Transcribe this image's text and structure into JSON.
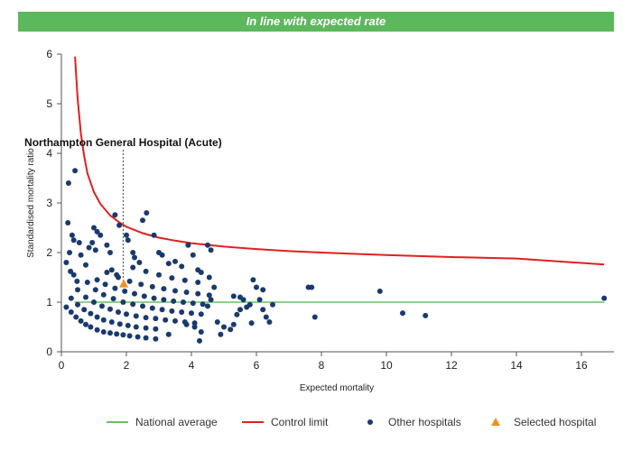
{
  "banner": {
    "text": "In line with expected rate",
    "color": "#5cb85c"
  },
  "chart_data": {
    "type": "scatter",
    "xlabel": "Expected mortality",
    "ylabel": "Standardised mortality ratio",
    "xlim": [
      0,
      17
    ],
    "ylim": [
      0,
      6
    ],
    "x_ticks": [
      0,
      2,
      4,
      6,
      8,
      10,
      12,
      14,
      16
    ],
    "y_ticks": [
      0,
      1,
      2,
      3,
      4,
      5,
      6
    ],
    "grid": false,
    "legend_position": "bottom",
    "annotation": {
      "text": "Northampton General Hospital (Acute)",
      "x": 1.9
    },
    "colors": {
      "national_average": "#6abf69",
      "control_limit": "#e02020",
      "other_hospitals": "#1a3a6e",
      "selected_hospital": "#f0901e"
    },
    "legend": [
      {
        "key": "national_average",
        "label": "National average",
        "marker": "line"
      },
      {
        "key": "control_limit",
        "label": "Control limit",
        "marker": "line"
      },
      {
        "key": "other_hospitals",
        "label": "Other hospitals",
        "marker": "dot"
      },
      {
        "key": "selected_hospital",
        "label": "Selected hospital",
        "marker": "triangle"
      }
    ],
    "series": [
      {
        "name": "National average",
        "type": "line",
        "x": [
          0.4,
          16.7
        ],
        "y": [
          1.0,
          1.0
        ]
      },
      {
        "name": "Control limit",
        "type": "line",
        "x": [
          0.42,
          0.5,
          0.6,
          0.7,
          0.8,
          1.0,
          1.2,
          1.5,
          1.8,
          2.0,
          2.5,
          3.0,
          3.5,
          4.0,
          5.0,
          6.0,
          7.0,
          8.0,
          10.0,
          12.0,
          14.0,
          16.7
        ],
        "y": [
          5.95,
          5.1,
          4.4,
          3.95,
          3.6,
          3.22,
          2.98,
          2.75,
          2.6,
          2.52,
          2.39,
          2.3,
          2.24,
          2.19,
          2.12,
          2.07,
          2.03,
          2.0,
          1.95,
          1.91,
          1.88,
          1.76
        ]
      },
      {
        "name": "Other hospitals",
        "type": "scatter",
        "points": [
          [
            0.22,
            3.4
          ],
          [
            0.42,
            3.65
          ],
          [
            0.2,
            2.6
          ],
          [
            0.33,
            2.35
          ],
          [
            0.38,
            2.25
          ],
          [
            0.55,
            2.2
          ],
          [
            0.85,
            2.1
          ],
          [
            0.25,
            2.0
          ],
          [
            0.6,
            1.95
          ],
          [
            0.75,
            1.75
          ],
          [
            0.15,
            1.8
          ],
          [
            0.28,
            1.62
          ],
          [
            0.38,
            1.55
          ],
          [
            0.48,
            1.42
          ],
          [
            1.0,
            2.5
          ],
          [
            1.1,
            2.42
          ],
          [
            1.2,
            2.35
          ],
          [
            0.95,
            2.2
          ],
          [
            1.05,
            2.05
          ],
          [
            1.4,
            2.15
          ],
          [
            1.5,
            2.0
          ],
          [
            1.65,
            2.76
          ],
          [
            1.78,
            2.55
          ],
          [
            2.0,
            2.35
          ],
          [
            2.05,
            2.25
          ],
          [
            2.2,
            2.0
          ],
          [
            1.55,
            1.65
          ],
          [
            1.7,
            1.55
          ],
          [
            2.25,
            1.9
          ],
          [
            2.4,
            1.8
          ],
          [
            2.5,
            2.65
          ],
          [
            2.62,
            2.8
          ],
          [
            2.85,
            2.35
          ],
          [
            3.0,
            2.0
          ],
          [
            3.1,
            1.95
          ],
          [
            3.3,
            1.78
          ],
          [
            3.5,
            1.82
          ],
          [
            3.7,
            1.72
          ],
          [
            3.9,
            2.15
          ],
          [
            4.05,
            1.95
          ],
          [
            4.2,
            1.65
          ],
          [
            4.3,
            1.6
          ],
          [
            4.5,
            2.15
          ],
          [
            4.6,
            2.05
          ],
          [
            4.55,
            1.5
          ],
          [
            4.7,
            1.3
          ],
          [
            4.6,
            1.05
          ],
          [
            4.5,
            0.92
          ],
          [
            4.1,
            0.5
          ],
          [
            4.3,
            0.4
          ],
          [
            4.25,
            0.22
          ],
          [
            3.3,
            0.35
          ],
          [
            3.85,
            0.55
          ],
          [
            4.8,
            0.6
          ],
          [
            5.0,
            0.5
          ],
          [
            5.2,
            0.45
          ],
          [
            4.9,
            0.35
          ],
          [
            5.3,
            1.12
          ],
          [
            5.5,
            1.1
          ],
          [
            5.6,
            1.05
          ],
          [
            5.7,
            0.9
          ],
          [
            5.4,
            0.75
          ],
          [
            5.5,
            0.85
          ],
          [
            5.8,
            0.95
          ],
          [
            5.9,
            1.45
          ],
          [
            6.0,
            1.3
          ],
          [
            6.2,
            1.25
          ],
          [
            6.1,
            1.05
          ],
          [
            6.2,
            0.85
          ],
          [
            6.3,
            0.7
          ],
          [
            6.4,
            0.6
          ],
          [
            6.5,
            0.95
          ],
          [
            5.85,
            0.58
          ],
          [
            5.3,
            0.55
          ],
          [
            7.6,
            1.3
          ],
          [
            7.7,
            1.3
          ],
          [
            7.8,
            0.7
          ],
          [
            9.8,
            1.22
          ],
          [
            10.5,
            0.78
          ],
          [
            11.2,
            0.73
          ],
          [
            16.7,
            1.08
          ],
          [
            0.15,
            0.9
          ],
          [
            0.3,
            0.8
          ],
          [
            0.45,
            0.7
          ],
          [
            0.6,
            0.62
          ],
          [
            0.75,
            0.55
          ],
          [
            0.9,
            0.5
          ],
          [
            1.1,
            0.44
          ],
          [
            1.3,
            0.4
          ],
          [
            1.5,
            0.38
          ],
          [
            1.7,
            0.36
          ],
          [
            1.9,
            0.34
          ],
          [
            2.1,
            0.32
          ],
          [
            2.35,
            0.3
          ],
          [
            2.6,
            0.28
          ],
          [
            2.9,
            0.26
          ],
          [
            0.3,
            1.08
          ],
          [
            0.5,
            0.95
          ],
          [
            0.7,
            0.85
          ],
          [
            0.9,
            0.77
          ],
          [
            1.1,
            0.7
          ],
          [
            1.3,
            0.64
          ],
          [
            1.55,
            0.6
          ],
          [
            1.8,
            0.56
          ],
          [
            2.05,
            0.53
          ],
          [
            2.3,
            0.5
          ],
          [
            2.6,
            0.48
          ],
          [
            2.9,
            0.46
          ],
          [
            0.5,
            1.25
          ],
          [
            0.75,
            1.1
          ],
          [
            1.0,
            1.0
          ],
          [
            1.25,
            0.92
          ],
          [
            1.5,
            0.86
          ],
          [
            1.75,
            0.8
          ],
          [
            2.0,
            0.76
          ],
          [
            2.3,
            0.72
          ],
          [
            2.6,
            0.69
          ],
          [
            2.9,
            0.67
          ],
          [
            3.2,
            0.64
          ],
          [
            3.5,
            0.62
          ],
          [
            3.8,
            0.6
          ],
          [
            4.1,
            0.58
          ],
          [
            0.8,
            1.4
          ],
          [
            1.05,
            1.25
          ],
          [
            1.3,
            1.15
          ],
          [
            1.6,
            1.07
          ],
          [
            1.9,
            1.0
          ],
          [
            2.2,
            0.96
          ],
          [
            2.5,
            0.92
          ],
          [
            2.8,
            0.88
          ],
          [
            3.1,
            0.85
          ],
          [
            3.4,
            0.82
          ],
          [
            3.7,
            0.8
          ],
          [
            4.0,
            0.78
          ],
          [
            4.3,
            0.76
          ],
          [
            1.1,
            1.45
          ],
          [
            1.35,
            1.36
          ],
          [
            1.65,
            1.28
          ],
          [
            1.95,
            1.22
          ],
          [
            2.25,
            1.17
          ],
          [
            2.55,
            1.12
          ],
          [
            2.85,
            1.08
          ],
          [
            3.15,
            1.05
          ],
          [
            3.45,
            1.02
          ],
          [
            3.75,
            1.0
          ],
          [
            4.05,
            0.98
          ],
          [
            4.35,
            0.96
          ],
          [
            1.4,
            1.6
          ],
          [
            1.75,
            1.5
          ],
          [
            2.1,
            1.42
          ],
          [
            2.45,
            1.36
          ],
          [
            2.8,
            1.31
          ],
          [
            3.15,
            1.27
          ],
          [
            3.5,
            1.23
          ],
          [
            3.85,
            1.2
          ],
          [
            4.2,
            1.17
          ],
          [
            4.55,
            1.14
          ],
          [
            2.2,
            1.7
          ],
          [
            2.6,
            1.62
          ],
          [
            3.0,
            1.55
          ],
          [
            3.4,
            1.49
          ],
          [
            3.8,
            1.44
          ],
          [
            4.2,
            1.4
          ]
        ]
      },
      {
        "name": "Selected hospital",
        "type": "scatter",
        "marker": "triangle",
        "points": [
          [
            1.92,
            1.37
          ]
        ]
      }
    ]
  }
}
